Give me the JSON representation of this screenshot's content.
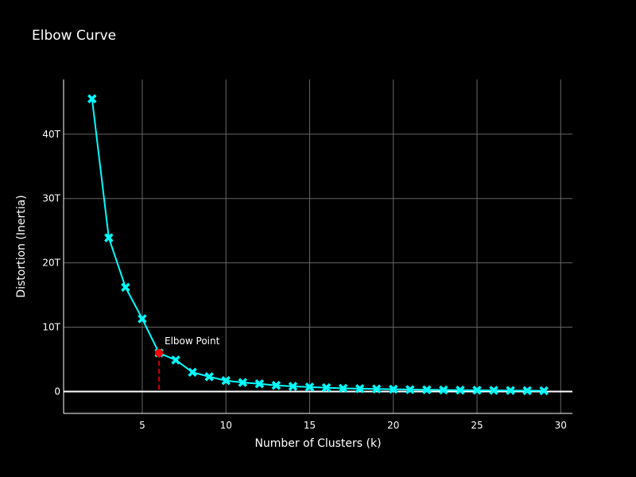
{
  "chart_data": {
    "type": "line",
    "title": "Elbow Curve",
    "xlabel": "Number of Clusters (k)",
    "ylabel": "Distortion (Inertia)",
    "xlim": [
      0.3,
      30.7
    ],
    "ylim": [
      -3.4,
      48.5
    ],
    "x_ticks": [
      5,
      10,
      15,
      20,
      25,
      30
    ],
    "x_tick_labels": [
      "5",
      "10",
      "15",
      "20",
      "25",
      "30"
    ],
    "y_ticks": [
      0,
      10,
      20,
      30,
      40
    ],
    "y_tick_labels": [
      "0",
      "10T",
      "20T",
      "30T",
      "40T"
    ],
    "grid": true,
    "line_color": "#00FFFF",
    "marker": "x",
    "series": [
      {
        "x": [
          2,
          3,
          4,
          5,
          6,
          7,
          8,
          9,
          10,
          11,
          12,
          13,
          14,
          15,
          16,
          17,
          18,
          19,
          20,
          21,
          22,
          23,
          24,
          25,
          26,
          27,
          28,
          29
        ],
        "values": [
          45.5,
          23.9,
          16.2,
          11.3,
          6.0,
          4.9,
          3.0,
          2.3,
          1.7,
          1.4,
          1.2,
          0.95,
          0.8,
          0.7,
          0.6,
          0.5,
          0.45,
          0.4,
          0.35,
          0.3,
          0.28,
          0.25,
          0.22,
          0.2,
          0.18,
          0.16,
          0.14,
          0.12
        ]
      }
    ],
    "annotation": {
      "text": "Elbow Point",
      "x": 6,
      "y": 6.0,
      "marker_color": "#FF0000",
      "line_color": "#CC0000"
    }
  }
}
